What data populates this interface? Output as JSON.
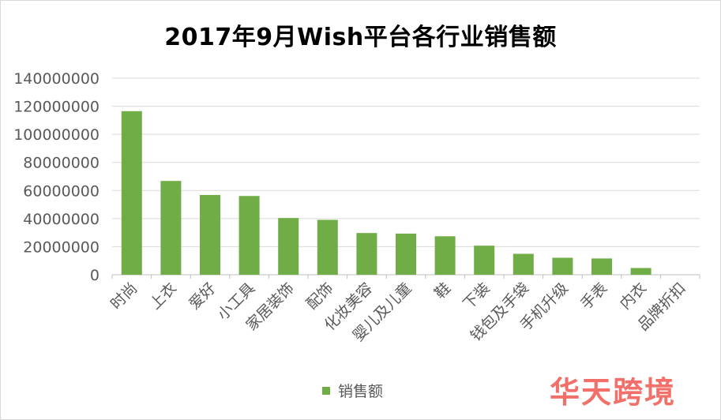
{
  "chart_data": {
    "type": "bar",
    "title": "2017年9月Wish平台各行业销售额",
    "categories": [
      "时尚",
      "上衣",
      "爱好",
      "小工具",
      "家居装饰",
      "配饰",
      "化妆美容",
      "婴儿及儿童",
      "鞋",
      "下装",
      "钱包及手袋",
      "手机升级",
      "手表",
      "内衣",
      "品牌折扣"
    ],
    "series": [
      {
        "name": "销售额",
        "values": [
          116500000,
          66800000,
          56800000,
          56100000,
          40400000,
          39100000,
          29700000,
          29300000,
          27400000,
          20700000,
          14900000,
          12100000,
          11600000,
          4800000,
          0
        ]
      }
    ],
    "ylim": [
      0,
      140000000
    ],
    "yticks": [
      "0",
      "20000000",
      "40000000",
      "60000000",
      "80000000",
      "100000000",
      "120000000",
      "140000000"
    ],
    "xlabel": "",
    "ylabel": "",
    "grid": true,
    "legend_position": "bottom",
    "bar_color": "#70ad47"
  },
  "watermark": "华天跨境",
  "watermark_color": "#f2615a"
}
